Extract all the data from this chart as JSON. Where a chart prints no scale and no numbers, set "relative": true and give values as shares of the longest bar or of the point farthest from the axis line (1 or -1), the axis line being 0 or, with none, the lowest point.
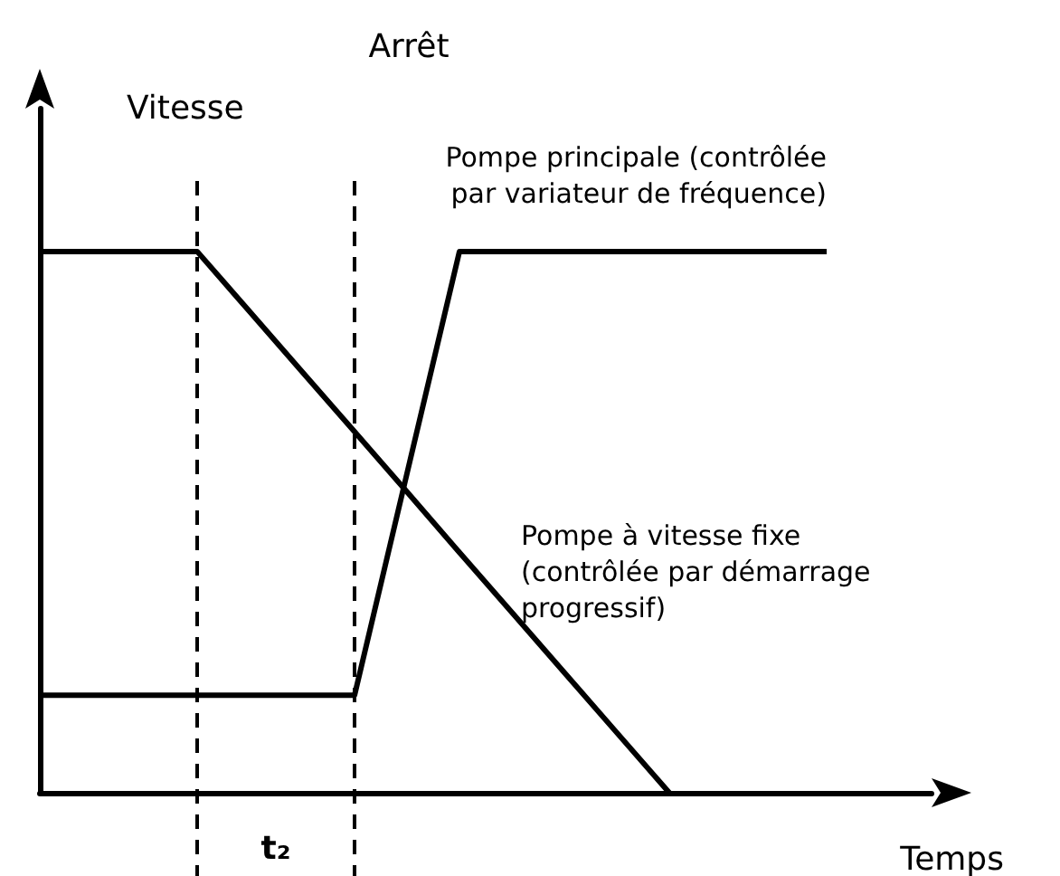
{
  "chart_data": {
    "type": "line",
    "relative": true,
    "xlabel": "Temps",
    "ylabel": "Vitesse",
    "grid": false,
    "legend": false,
    "marker": "none",
    "line_style": "solid",
    "categories": [
      null,
      null,
      null,
      null,
      null,
      null,
      null,
      null,
      null,
      null,
      null,
      null,
      null,
      null,
      null,
      null,
      null,
      null
    ],
    "series": [
      {
        "name": "Pompe principale (contrôlée\npar variateur de fréquence)",
        "color": "#000000",
        "values": [
          0.18,
          0.18,
          0.18,
          0.18,
          0.18,
          0.18,
          0.18,
          0.59,
          1,
          1,
          1,
          1,
          1,
          1,
          1,
          1,
          null,
          null
        ]
      },
      {
        "name": "Pompe à vitesse fixe\n(contrôlée par démarrage\nprogressif)",
        "color": "#000000",
        "values": [
          1,
          1,
          1,
          1,
          0.889,
          0.778,
          0.667,
          0.556,
          0.444,
          0.333,
          0.222,
          0.111,
          0,
          null,
          null,
          null,
          null,
          null
        ]
      }
    ],
    "annotations": [
      "Arrêt",
      "t₂"
    ]
  }
}
